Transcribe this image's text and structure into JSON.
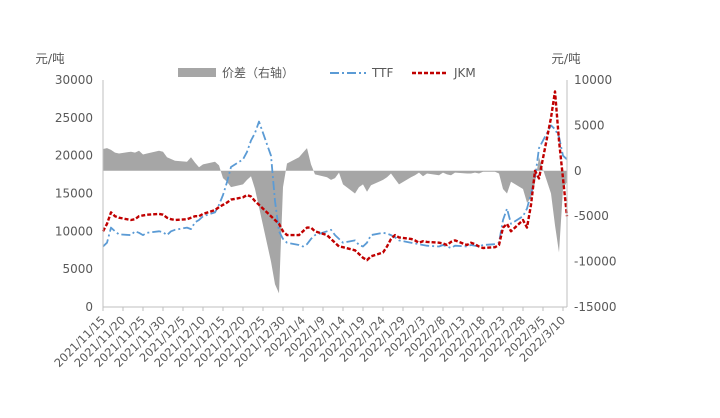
{
  "chart_data": {
    "type": "line",
    "title": "",
    "y_left": {
      "unit": "元/吨",
      "ylim": [
        0,
        30000
      ],
      "ticks": [
        0,
        5000,
        10000,
        15000,
        20000,
        25000,
        30000
      ]
    },
    "y_right": {
      "unit": "元/吨",
      "ylim": [
        -15000,
        10000
      ],
      "ticks": [
        -15000,
        -10000,
        -5000,
        0,
        5000,
        10000
      ]
    },
    "x_tick_labels": [
      "2021/11/15",
      "2021/11/20",
      "2021/11/25",
      "2021/11/30",
      "2021/12/5",
      "2021/12/10",
      "2021/12/15",
      "2021/12/20",
      "2021/12/25",
      "2021/12/30",
      "2022/1/4",
      "2022/1/9",
      "2022/1/14",
      "2022/1/19",
      "2022/1/24",
      "2022/1/29",
      "2022/2/3",
      "2022/2/8",
      "2022/2/13",
      "2022/2/18",
      "2022/2/23",
      "2022/2/28",
      "2022/3/5",
      "2022/3/10"
    ],
    "x_start": "2021/11/15",
    "x_end": "2022/3/11",
    "grid": false,
    "legend": {
      "position": "top",
      "entries": [
        "价差（右轴）",
        "TTF",
        "JKM"
      ]
    },
    "series": [
      {
        "name": "价差（右轴）",
        "type": "area",
        "axis": "right",
        "color": "#a6a6a6",
        "x": [
          "2021/11/15",
          "2021/11/16",
          "2021/11/17",
          "2021/11/18",
          "2021/11/19",
          "2021/11/22",
          "2021/11/23",
          "2021/11/24",
          "2021/11/25",
          "2021/11/26",
          "2021/11/29",
          "2021/11/30",
          "2021/12/1",
          "2021/12/2",
          "2021/12/3",
          "2021/12/6",
          "2021/12/7",
          "2021/12/8",
          "2021/12/9",
          "2021/12/10",
          "2021/12/13",
          "2021/12/14",
          "2021/12/15",
          "2021/12/16",
          "2021/12/17",
          "2021/12/20",
          "2021/12/21",
          "2021/12/22",
          "2021/12/23",
          "2021/12/24",
          "2021/12/27",
          "2021/12/28",
          "2021/12/29",
          "2021/12/30",
          "2021/12/31",
          "2022/1/3",
          "2022/1/4",
          "2022/1/5",
          "2022/1/6",
          "2022/1/7",
          "2022/1/10",
          "2022/1/11",
          "2022/1/12",
          "2022/1/13",
          "2022/1/14",
          "2022/1/17",
          "2022/1/18",
          "2022/1/19",
          "2022/1/20",
          "2022/1/21",
          "2022/1/24",
          "2022/1/25",
          "2022/1/26",
          "2022/1/27",
          "2022/1/28",
          "2022/1/31",
          "2022/2/1",
          "2022/2/2",
          "2022/2/3",
          "2022/2/4",
          "2022/2/7",
          "2022/2/8",
          "2022/2/9",
          "2022/2/10",
          "2022/2/11",
          "2022/2/14",
          "2022/2/15",
          "2022/2/16",
          "2022/2/17",
          "2022/2/18",
          "2022/2/21",
          "2022/2/22",
          "2022/2/23",
          "2022/2/24",
          "2022/2/25",
          "2022/2/28",
          "2022/3/1",
          "2022/3/2",
          "2022/3/3",
          "2022/3/4",
          "2022/3/7",
          "2022/3/8",
          "2022/3/9",
          "2022/3/10",
          "2022/3/11"
        ],
        "values": [
          2400,
          2500,
          2300,
          2000,
          1900,
          2100,
          2000,
          2200,
          1800,
          1900,
          2200,
          2100,
          1500,
          1300,
          1100,
          1000,
          1500,
          900,
          400,
          700,
          1000,
          600,
          -800,
          -1200,
          -1800,
          -1500,
          -1000,
          -600,
          -2000,
          -4000,
          -10000,
          -12500,
          -13500,
          -1800,
          800,
          1500,
          2000,
          2500,
          700,
          -400,
          -700,
          -1000,
          -800,
          -200,
          -1500,
          -2500,
          -1800,
          -1500,
          -2300,
          -1600,
          -1000,
          -700,
          -300,
          -900,
          -1500,
          -700,
          -500,
          -200,
          -600,
          -300,
          -500,
          -200,
          -400,
          -500,
          -200,
          -300,
          -300,
          -200,
          -300,
          -100,
          -100,
          -300,
          -2000,
          -2500,
          -1200,
          -2000,
          -3500,
          -3000,
          -1300,
          1500,
          -2500,
          -6000,
          -9000,
          -2000,
          -1200
        ]
      },
      {
        "name": "TTF",
        "type": "line",
        "axis": "left",
        "color": "#5b9bd5",
        "x": [
          "2021/11/15",
          "2021/11/16",
          "2021/11/17",
          "2021/11/18",
          "2021/11/19",
          "2021/11/22",
          "2021/11/23",
          "2021/11/24",
          "2021/11/25",
          "2021/11/26",
          "2021/11/29",
          "2021/11/30",
          "2021/12/1",
          "2021/12/2",
          "2021/12/3",
          "2021/12/6",
          "2021/12/7",
          "2021/12/8",
          "2021/12/9",
          "2021/12/10",
          "2021/12/13",
          "2021/12/14",
          "2021/12/15",
          "2021/12/16",
          "2021/12/17",
          "2021/12/20",
          "2021/12/21",
          "2021/12/22",
          "2021/12/23",
          "2021/12/24",
          "2021/12/27",
          "2021/12/28",
          "2021/12/29",
          "2021/12/30",
          "2021/12/31",
          "2022/1/3",
          "2022/1/4",
          "2022/1/5",
          "2022/1/6",
          "2022/1/7",
          "2022/1/10",
          "2022/1/11",
          "2022/1/12",
          "2022/1/13",
          "2022/1/14",
          "2022/1/17",
          "2022/1/18",
          "2022/1/19",
          "2022/1/20",
          "2022/1/21",
          "2022/1/24",
          "2022/1/25",
          "2022/1/26",
          "2022/1/27",
          "2022/1/28",
          "2022/1/31",
          "2022/2/1",
          "2022/2/2",
          "2022/2/3",
          "2022/2/4",
          "2022/2/7",
          "2022/2/8",
          "2022/2/9",
          "2022/2/10",
          "2022/2/11",
          "2022/2/14",
          "2022/2/15",
          "2022/2/16",
          "2022/2/17",
          "2022/2/18",
          "2022/2/21",
          "2022/2/22",
          "2022/2/23",
          "2022/2/24",
          "2022/2/25",
          "2022/2/28",
          "2022/3/1",
          "2022/3/2",
          "2022/3/3",
          "2022/3/4",
          "2022/3/7",
          "2022/3/8",
          "2022/3/9",
          "2022/3/10",
          "2022/3/11"
        ],
        "values": [
          8000,
          8500,
          10500,
          10000,
          9600,
          9500,
          10000,
          9800,
          9500,
          9800,
          10000,
          9900,
          9500,
          10000,
          10200,
          10500,
          10300,
          11200,
          11500,
          12000,
          12500,
          13500,
          14800,
          16500,
          18500,
          19500,
          20500,
          22000,
          23000,
          24500,
          20000,
          14000,
          10000,
          9000,
          8500,
          8200,
          8000,
          8300,
          9000,
          9500,
          10000,
          10200,
          9500,
          9000,
          8500,
          8800,
          8200,
          8000,
          8500,
          9500,
          9800,
          9700,
          9500,
          9200,
          8800,
          8500,
          8400,
          8300,
          8200,
          8100,
          8000,
          8200,
          8000,
          7800,
          8100,
          8000,
          8200,
          8100,
          8000,
          8200,
          8300,
          8500,
          11500,
          13000,
          11000,
          12000,
          13000,
          15000,
          17000,
          21000,
          24000,
          23500,
          22500,
          20000,
          19500
        ]
      },
      {
        "name": "JKM",
        "type": "line",
        "axis": "left",
        "color": "#c00000",
        "x": [
          "2021/11/15",
          "2021/11/16",
          "2021/11/17",
          "2021/11/18",
          "2021/11/19",
          "2021/11/22",
          "2021/11/23",
          "2021/11/24",
          "2021/11/25",
          "2021/11/26",
          "2021/11/29",
          "2021/11/30",
          "2021/12/1",
          "2021/12/2",
          "2021/12/3",
          "2021/12/6",
          "2021/12/7",
          "2021/12/8",
          "2021/12/9",
          "2021/12/10",
          "2021/12/13",
          "2021/12/14",
          "2021/12/15",
          "2021/12/16",
          "2021/12/17",
          "2021/12/20",
          "2021/12/21",
          "2021/12/22",
          "2021/12/23",
          "2021/12/24",
          "2021/12/27",
          "2021/12/28",
          "2021/12/29",
          "2021/12/30",
          "2021/12/31",
          "2022/1/3",
          "2022/1/4",
          "2022/1/5",
          "2022/1/6",
          "2022/1/7",
          "2022/1/10",
          "2022/1/11",
          "2022/1/12",
          "2022/1/13",
          "2022/1/14",
          "2022/1/17",
          "2022/1/18",
          "2022/1/19",
          "2022/1/20",
          "2022/1/21",
          "2022/1/24",
          "2022/1/25",
          "2022/1/26",
          "2022/1/27",
          "2022/1/28",
          "2022/1/31",
          "2022/2/1",
          "2022/2/2",
          "2022/2/3",
          "2022/2/4",
          "2022/2/7",
          "2022/2/8",
          "2022/2/9",
          "2022/2/10",
          "2022/2/11",
          "2022/2/14",
          "2022/2/15",
          "2022/2/16",
          "2022/2/17",
          "2022/2/18",
          "2022/2/21",
          "2022/2/22",
          "2022/2/23",
          "2022/2/24",
          "2022/2/25",
          "2022/2/28",
          "2022/3/1",
          "2022/3/2",
          "2022/3/3",
          "2022/3/4",
          "2022/3/7",
          "2022/3/8",
          "2022/3/9",
          "2022/3/10",
          "2022/3/11"
        ],
        "values": [
          10000,
          11000,
          12500,
          12000,
          11800,
          11500,
          11600,
          12000,
          12100,
          12200,
          12300,
          12200,
          11800,
          11600,
          11500,
          11600,
          11800,
          12000,
          12000,
          12300,
          12800,
          13200,
          13500,
          13800,
          14200,
          14500,
          14800,
          14600,
          14000,
          13500,
          12000,
          11500,
          11000,
          10000,
          9500,
          9500,
          10000,
          10500,
          10500,
          10000,
          9500,
          9000,
          8500,
          8000,
          7900,
          7500,
          7000,
          6500,
          6200,
          6700,
          7200,
          8000,
          9000,
          9500,
          9200,
          9000,
          8800,
          8500,
          8700,
          8600,
          8500,
          8400,
          8200,
          8600,
          8800,
          8200,
          8500,
          8300,
          8000,
          7800,
          7900,
          8200,
          10500,
          11000,
          10000,
          11500,
          10500,
          13500,
          18000,
          17000,
          25000,
          28500,
          22000,
          17000,
          12000
        ]
      }
    ]
  }
}
